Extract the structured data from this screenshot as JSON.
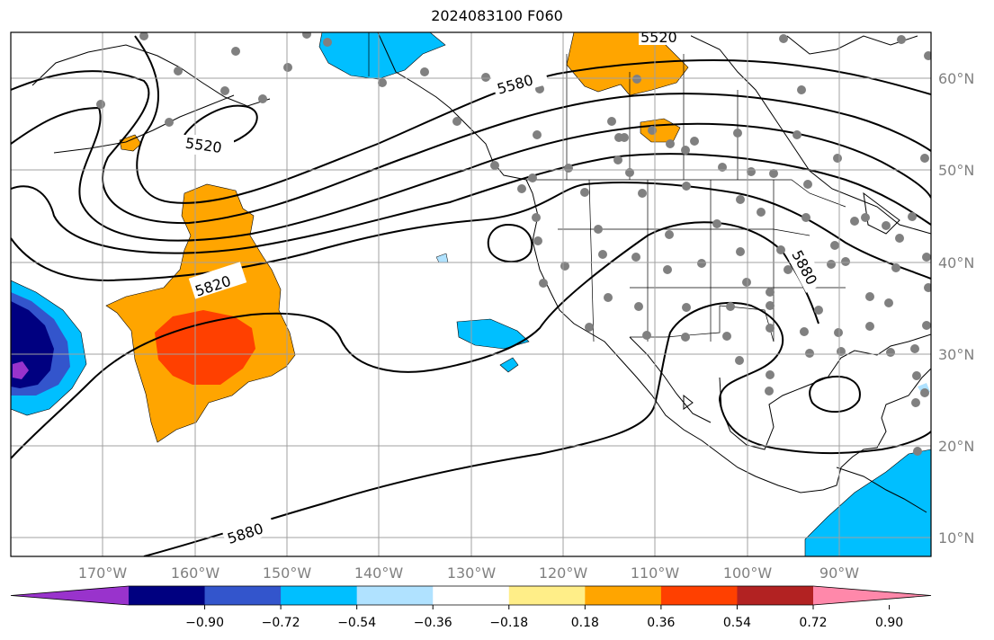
{
  "title": "2024083100 F060",
  "map": {
    "background": "#ffffff",
    "grid_color": "#a0a0a0",
    "lon_labels": [
      "170°W",
      "160°W",
      "150°W",
      "140°W",
      "130°W",
      "120°W",
      "110°W",
      "100°W",
      "90°W"
    ],
    "lat_labels": [
      "60°N",
      "50°N",
      "40°N",
      "30°N",
      "20°N",
      "10°N"
    ],
    "contour_labels": [
      "5520",
      "5520",
      "5580",
      "5820",
      "5880",
      "5880"
    ],
    "station_marker": "circle",
    "station_color": "#808080"
  },
  "colorbar": {
    "colors": [
      "#9933cc",
      "#000080",
      "#3355cc",
      "#00bfff",
      "#b0e2ff",
      "#ffffff",
      "#ffee88",
      "#ffa500",
      "#ff4000",
      "#b22222",
      "#ff88aa"
    ],
    "tick_labels": [
      "−0.90",
      "−0.72",
      "−0.54",
      "−0.36",
      "−0.18",
      "0.18",
      "0.36",
      "0.54",
      "0.72",
      "0.90"
    ]
  }
}
